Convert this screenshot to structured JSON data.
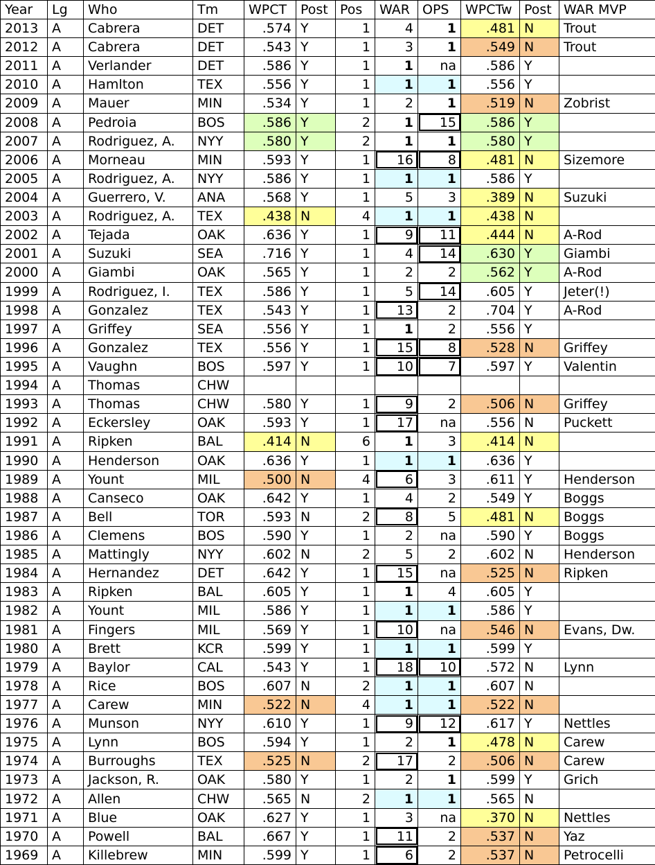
{
  "colors": {
    "yellow": "#ffff99",
    "orange": "#f9c894",
    "green": "#ddffbb",
    "cyan": "#ddfbff"
  },
  "headers": [
    "Year",
    "Lg",
    "Who",
    "Tm",
    "WPCT",
    "Post",
    "Pos",
    "WAR",
    "OPS",
    "WPCTw",
    "Post",
    "WAR MVP"
  ],
  "rows": [
    {
      "year": "2013",
      "lg": "A",
      "who": "Cabrera",
      "tm": "DET",
      "wpct": ".574",
      "post": "Y",
      "pos": "1",
      "war": "4",
      "ops": "1",
      "wpctw": ".481",
      "postw": "N",
      "warmvp": "Trout",
      "hlw": "y",
      "bold_ops": true
    },
    {
      "year": "2012",
      "lg": "A",
      "who": "Cabrera",
      "tm": "DET",
      "wpct": ".543",
      "post": "Y",
      "pos": "1",
      "war": "3",
      "ops": "1",
      "wpctw": ".549",
      "postw": "N",
      "warmvp": "Trout",
      "hlw": "o",
      "bold_ops": true
    },
    {
      "year": "2011",
      "lg": "A",
      "who": "Verlander",
      "tm": "DET",
      "wpct": ".586",
      "post": "Y",
      "pos": "1",
      "war": "1",
      "ops": "na",
      "wpctw": ".586",
      "postw": "Y",
      "warmvp": "",
      "bold_war": true
    },
    {
      "year": "2010",
      "lg": "A",
      "who": "Hamlton",
      "tm": "TEX",
      "wpct": ".556",
      "post": "Y",
      "pos": "1",
      "war": "1",
      "ops": "1",
      "wpctw": ".556",
      "postw": "Y",
      "warmvp": "",
      "hlwarops": "c",
      "bold_war": true,
      "bold_ops": true
    },
    {
      "year": "2009",
      "lg": "A",
      "who": "Mauer",
      "tm": "MIN",
      "wpct": ".534",
      "post": "Y",
      "pos": "1",
      "war": "2",
      "ops": "1",
      "wpctw": ".519",
      "postw": "N",
      "warmvp": "Zobrist",
      "hlw": "o",
      "bold_ops": true
    },
    {
      "year": "2008",
      "lg": "A",
      "who": "Pedroia",
      "tm": "BOS",
      "wpct": ".586",
      "post": "Y",
      "pos": "2",
      "war": "1",
      "ops": "15",
      "wpctw": ".586",
      "postw": "Y",
      "warmvp": "",
      "hlp": "g",
      "hlw": "g",
      "bold_war": true,
      "box_ops": true
    },
    {
      "year": "2007",
      "lg": "A",
      "who": "Rodriguez, A.",
      "tm": "NYY",
      "wpct": ".580",
      "post": "Y",
      "pos": "2",
      "war": "1",
      "ops": "1",
      "wpctw": ".580",
      "postw": "Y",
      "warmvp": "",
      "hlp": "g",
      "hlw": "g",
      "bold_war": true,
      "bold_ops": true
    },
    {
      "year": "2006",
      "lg": "A",
      "who": "Morneau",
      "tm": "MIN",
      "wpct": ".593",
      "post": "Y",
      "pos": "1",
      "war": "16",
      "ops": "8",
      "wpctw": ".481",
      "postw": "N",
      "warmvp": "Sizemore",
      "hlw": "y",
      "box_war": true,
      "box_ops": true
    },
    {
      "year": "2005",
      "lg": "A",
      "who": "Rodriguez, A.",
      "tm": "NYY",
      "wpct": ".586",
      "post": "Y",
      "pos": "1",
      "war": "1",
      "ops": "1",
      "wpctw": ".586",
      "postw": "Y",
      "warmvp": "",
      "hlwarops": "c",
      "bold_war": true,
      "bold_ops": true
    },
    {
      "year": "2004",
      "lg": "A",
      "who": "Guerrero, V.",
      "tm": "ANA",
      "wpct": ".568",
      "post": "Y",
      "pos": "1",
      "war": "5",
      "ops": "3",
      "wpctw": ".389",
      "postw": "N",
      "warmvp": "Suzuki",
      "hlw": "y"
    },
    {
      "year": "2003",
      "lg": "A",
      "who": "Rodriguez, A.",
      "tm": "TEX",
      "wpct": ".438",
      "post": "N",
      "pos": "4",
      "war": "1",
      "ops": "1",
      "wpctw": ".438",
      "postw": "N",
      "warmvp": "",
      "hlp": "y",
      "hlw": "y",
      "hlwarops": "c",
      "bold_war": true,
      "bold_ops": true
    },
    {
      "year": "2002",
      "lg": "A",
      "who": "Tejada",
      "tm": "OAK",
      "wpct": ".636",
      "post": "Y",
      "pos": "1",
      "war": "9",
      "ops": "11",
      "wpctw": ".444",
      "postw": "N",
      "warmvp": "A-Rod",
      "hlw": "y",
      "box_war": true,
      "box_ops": true
    },
    {
      "year": "2001",
      "lg": "A",
      "who": "Suzuki",
      "tm": "SEA",
      "wpct": ".716",
      "post": "Y",
      "pos": "1",
      "war": "4",
      "ops": "14",
      "wpctw": ".630",
      "postw": "Y",
      "warmvp": "Giambi",
      "hlw": "g",
      "box_ops": true
    },
    {
      "year": "2000",
      "lg": "A",
      "who": "Giambi",
      "tm": "OAK",
      "wpct": ".565",
      "post": "Y",
      "pos": "1",
      "war": "2",
      "ops": "2",
      "wpctw": ".562",
      "postw": "Y",
      "warmvp": "A-Rod",
      "hlw": "g"
    },
    {
      "year": "1999",
      "lg": "A",
      "who": "Rodriguez, I.",
      "tm": "TEX",
      "wpct": ".586",
      "post": "Y",
      "pos": "1",
      "war": "5",
      "ops": "14",
      "wpctw": ".605",
      "postw": "Y",
      "warmvp": "Jeter(!)",
      "box_ops": true
    },
    {
      "year": "1998",
      "lg": "A",
      "who": "Gonzalez",
      "tm": "TEX",
      "wpct": ".543",
      "post": "Y",
      "pos": "1",
      "war": "13",
      "ops": "2",
      "wpctw": ".704",
      "postw": "Y",
      "warmvp": "A-Rod",
      "box_war": true
    },
    {
      "year": "1997",
      "lg": "A",
      "who": "Griffey",
      "tm": "SEA",
      "wpct": ".556",
      "post": "Y",
      "pos": "1",
      "war": "1",
      "ops": "2",
      "wpctw": ".556",
      "postw": "Y",
      "warmvp": "",
      "bold_war": true
    },
    {
      "year": "1996",
      "lg": "A",
      "who": "Gonzalez",
      "tm": "TEX",
      "wpct": ".556",
      "post": "Y",
      "pos": "1",
      "war": "15",
      "ops": "8",
      "wpctw": ".528",
      "postw": "N",
      "warmvp": "Griffey",
      "hlw": "o",
      "box_war": true,
      "box_ops": true
    },
    {
      "year": "1995",
      "lg": "A",
      "who": "Vaughn",
      "tm": "BOS",
      "wpct": ".597",
      "post": "Y",
      "pos": "1",
      "war": "10",
      "ops": "7",
      "wpctw": ".597",
      "postw": "Y",
      "warmvp": "Valentin",
      "box_war": true,
      "box_ops": true
    },
    {
      "year": "1994",
      "lg": "A",
      "who": "Thomas",
      "tm": "CHW",
      "wpct": "",
      "post": "",
      "pos": "",
      "war": "",
      "ops": "",
      "wpctw": "",
      "postw": "",
      "warmvp": ""
    },
    {
      "year": "1993",
      "lg": "A",
      "who": "Thomas",
      "tm": "CHW",
      "wpct": ".580",
      "post": "Y",
      "pos": "1",
      "war": "9",
      "ops": "2",
      "wpctw": ".506",
      "postw": "N",
      "warmvp": "Griffey",
      "hlw": "o",
      "box_war": true
    },
    {
      "year": "1992",
      "lg": "A",
      "who": "Eckersley",
      "tm": "OAK",
      "wpct": ".593",
      "post": "Y",
      "pos": "1",
      "war": "17",
      "ops": "na",
      "wpctw": ".556",
      "postw": "N",
      "warmvp": "Puckett",
      "box_war": true
    },
    {
      "year": "1991",
      "lg": "A",
      "who": "Ripken",
      "tm": "BAL",
      "wpct": ".414",
      "post": "N",
      "pos": "6",
      "war": "1",
      "ops": "3",
      "wpctw": ".414",
      "postw": "N",
      "warmvp": "",
      "hlp": "y",
      "hlw": "y",
      "bold_war": true
    },
    {
      "year": "1990",
      "lg": "A",
      "who": "Henderson",
      "tm": "OAK",
      "wpct": ".636",
      "post": "Y",
      "pos": "1",
      "war": "1",
      "ops": "1",
      "wpctw": ".636",
      "postw": "Y",
      "warmvp": "",
      "hlwarops": "c",
      "bold_war": true,
      "bold_ops": true
    },
    {
      "year": "1989",
      "lg": "A",
      "who": "Yount",
      "tm": "MIL",
      "wpct": ".500",
      "post": "N",
      "pos": "4",
      "war": "6",
      "ops": "3",
      "wpctw": ".611",
      "postw": "Y",
      "warmvp": "Henderson",
      "hlp": "o",
      "box_war": true
    },
    {
      "year": "1988",
      "lg": "A",
      "who": "Canseco",
      "tm": "OAK",
      "wpct": ".642",
      "post": "Y",
      "pos": "1",
      "war": "4",
      "ops": "2",
      "wpctw": ".549",
      "postw": "Y",
      "warmvp": "Boggs"
    },
    {
      "year": "1987",
      "lg": "A",
      "who": "Bell",
      "tm": "TOR",
      "wpct": ".593",
      "post": "N",
      "pos": "2",
      "war": "8",
      "ops": "5",
      "wpctw": ".481",
      "postw": "N",
      "warmvp": "Boggs",
      "hlw": "y",
      "box_war": true
    },
    {
      "year": "1986",
      "lg": "A",
      "who": "Clemens",
      "tm": "BOS",
      "wpct": ".590",
      "post": "Y",
      "pos": "1",
      "war": "2",
      "ops": "na",
      "wpctw": ".590",
      "postw": "Y",
      "warmvp": "Boggs"
    },
    {
      "year": "1985",
      "lg": "A",
      "who": "Mattingly",
      "tm": "NYY",
      "wpct": ".602",
      "post": "N",
      "pos": "2",
      "war": "5",
      "ops": "2",
      "wpctw": ".602",
      "postw": "N",
      "warmvp": "Henderson"
    },
    {
      "year": "1984",
      "lg": "A",
      "who": "Hernandez",
      "tm": "DET",
      "wpct": ".642",
      "post": "Y",
      "pos": "1",
      "war": "15",
      "ops": "na",
      "wpctw": ".525",
      "postw": "N",
      "warmvp": "Ripken",
      "hlw": "o",
      "box_war": true
    },
    {
      "year": "1983",
      "lg": "A",
      "who": "Ripken",
      "tm": "BAL",
      "wpct": ".605",
      "post": "Y",
      "pos": "1",
      "war": "1",
      "ops": "4",
      "wpctw": ".605",
      "postw": "Y",
      "warmvp": "",
      "bold_war": true
    },
    {
      "year": "1982",
      "lg": "A",
      "who": "Yount",
      "tm": "MIL",
      "wpct": ".586",
      "post": "Y",
      "pos": "1",
      "war": "1",
      "ops": "1",
      "wpctw": ".586",
      "postw": "Y",
      "warmvp": "",
      "hlwarops": "c",
      "bold_war": true,
      "bold_ops": true
    },
    {
      "year": "1981",
      "lg": "A",
      "who": "Fingers",
      "tm": "MIL",
      "wpct": ".569",
      "post": "Y",
      "pos": "1",
      "war": "10",
      "ops": "na",
      "wpctw": ".546",
      "postw": "N",
      "warmvp": "Evans, Dw.",
      "hlw": "o",
      "box_war": true
    },
    {
      "year": "1980",
      "lg": "A",
      "who": "Brett",
      "tm": "KCR",
      "wpct": ".599",
      "post": "Y",
      "pos": "1",
      "war": "1",
      "ops": "1",
      "wpctw": ".599",
      "postw": "Y",
      "warmvp": "",
      "hlwarops": "c",
      "bold_war": true,
      "bold_ops": true
    },
    {
      "year": "1979",
      "lg": "A",
      "who": "Baylor",
      "tm": "CAL",
      "wpct": ".543",
      "post": "Y",
      "pos": "1",
      "war": "18",
      "ops": "10",
      "wpctw": ".572",
      "postw": "N",
      "warmvp": "Lynn",
      "box_war": true,
      "box_ops": true
    },
    {
      "year": "1978",
      "lg": "A",
      "who": "Rice",
      "tm": "BOS",
      "wpct": ".607",
      "post": "N",
      "pos": "2",
      "war": "1",
      "ops": "1",
      "wpctw": ".607",
      "postw": "N",
      "warmvp": "",
      "hlwarops": "c",
      "bold_war": true,
      "bold_ops": true
    },
    {
      "year": "1977",
      "lg": "A",
      "who": "Carew",
      "tm": "MIN",
      "wpct": ".522",
      "post": "N",
      "pos": "4",
      "war": "1",
      "ops": "1",
      "wpctw": ".522",
      "postw": "N",
      "warmvp": "",
      "hlp": "o",
      "hlw": "o",
      "hlwarops": "c",
      "bold_war": true,
      "bold_ops": true
    },
    {
      "year": "1976",
      "lg": "A",
      "who": "Munson",
      "tm": "NYY",
      "wpct": ".610",
      "post": "Y",
      "pos": "1",
      "war": "9",
      "ops": "12",
      "wpctw": ".617",
      "postw": "Y",
      "warmvp": "Nettles",
      "box_war": true,
      "box_ops": true
    },
    {
      "year": "1975",
      "lg": "A",
      "who": "Lynn",
      "tm": "BOS",
      "wpct": ".594",
      "post": "Y",
      "pos": "1",
      "war": "2",
      "ops": "1",
      "wpctw": ".478",
      "postw": "N",
      "warmvp": "Carew",
      "hlw": "y",
      "bold_ops": true
    },
    {
      "year": "1974",
      "lg": "A",
      "who": "Burroughs",
      "tm": "TEX",
      "wpct": ".525",
      "post": "N",
      "pos": "2",
      "war": "17",
      "ops": "2",
      "wpctw": ".506",
      "postw": "N",
      "warmvp": "Carew",
      "hlp": "o",
      "hlw": "o",
      "box_war": true
    },
    {
      "year": "1973",
      "lg": "A",
      "who": "Jackson, R.",
      "tm": "OAK",
      "wpct": ".580",
      "post": "Y",
      "pos": "1",
      "war": "2",
      "ops": "1",
      "wpctw": ".599",
      "postw": "Y",
      "warmvp": "Grich",
      "bold_ops": true
    },
    {
      "year": "1972",
      "lg": "A",
      "who": "Allen",
      "tm": "CHW",
      "wpct": ".565",
      "post": "N",
      "pos": "2",
      "war": "1",
      "ops": "1",
      "wpctw": ".565",
      "postw": "N",
      "warmvp": "",
      "hlwarops": "c",
      "bold_war": true,
      "bold_ops": true
    },
    {
      "year": "1971",
      "lg": "A",
      "who": "Blue",
      "tm": "OAK",
      "wpct": ".627",
      "post": "Y",
      "pos": "1",
      "war": "3",
      "ops": "na",
      "wpctw": ".370",
      "postw": "N",
      "warmvp": "Nettles",
      "hlw": "y"
    },
    {
      "year": "1970",
      "lg": "A",
      "who": "Powell",
      "tm": "BAL",
      "wpct": ".667",
      "post": "Y",
      "pos": "1",
      "war": "11",
      "ops": "2",
      "wpctw": ".537",
      "postw": "N",
      "warmvp": "Yaz",
      "hlw": "o",
      "box_war": true
    },
    {
      "year": "1969",
      "lg": "A",
      "who": "Killebrew",
      "tm": "MIN",
      "wpct": ".599",
      "post": "Y",
      "pos": "1",
      "war": "6",
      "ops": "2",
      "wpctw": ".537",
      "postw": "N",
      "warmvp": "Petrocelli",
      "hlw": "o",
      "box_war": true
    }
  ]
}
